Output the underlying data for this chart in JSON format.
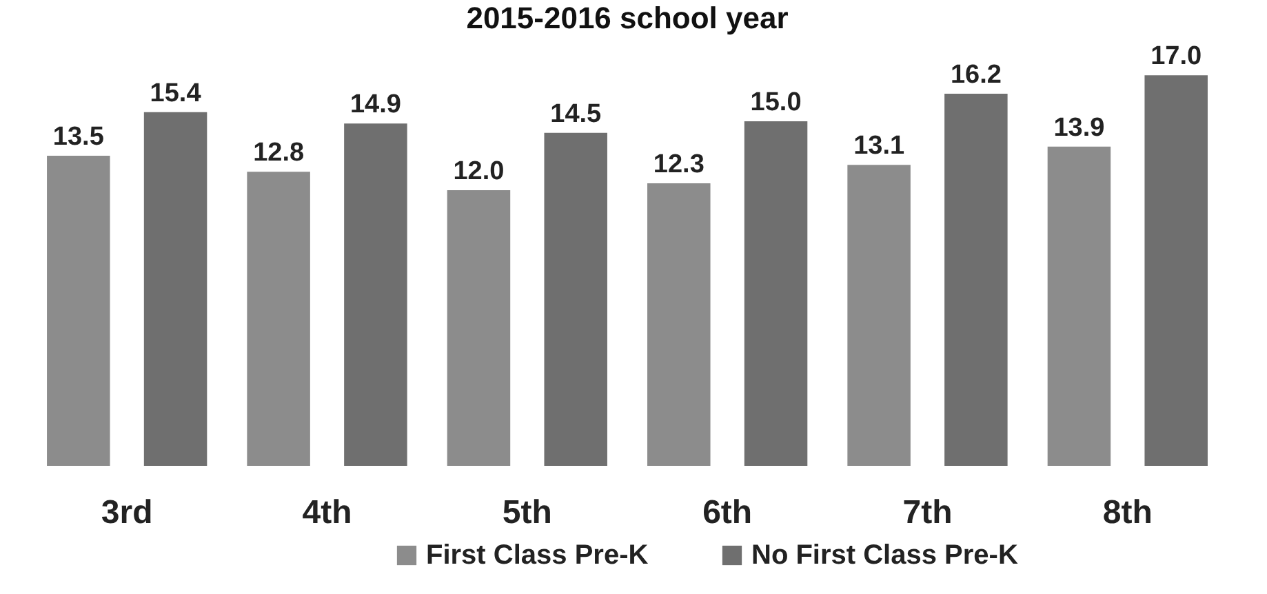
{
  "chart_data": {
    "type": "bar",
    "title": "2015-2016 school year",
    "categories": [
      "3rd",
      "4th",
      "5th",
      "6th",
      "7th",
      "8th"
    ],
    "series": [
      {
        "name": "First Class Pre-K",
        "color": "#8c8c8c",
        "values": [
          13.5,
          12.8,
          12.0,
          12.3,
          13.1,
          13.9
        ],
        "value_labels": [
          "13.5",
          "12.8",
          "12.0",
          "12.3",
          "13.1",
          "13.9"
        ]
      },
      {
        "name": "No First Class Pre-K",
        "color": "#6f6f6f",
        "values": [
          15.4,
          14.9,
          14.5,
          15.0,
          16.2,
          17.0
        ],
        "value_labels": [
          "15.4",
          "14.9",
          "14.5",
          "15.0",
          "16.2",
          "17.0"
        ]
      }
    ],
    "legend": "bottom",
    "grid": false
  }
}
